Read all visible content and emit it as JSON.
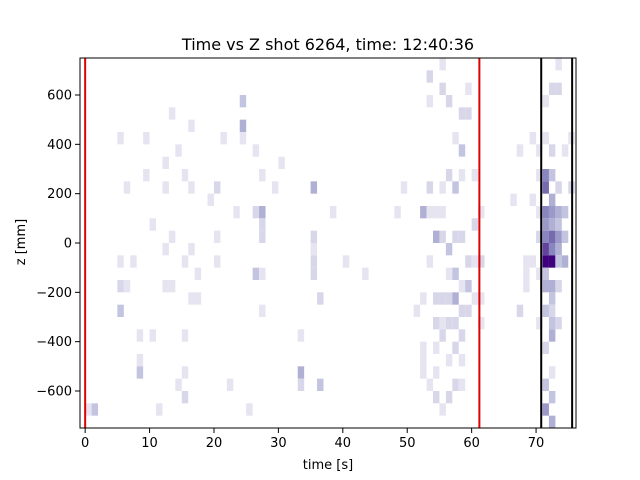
{
  "chart_data": {
    "type": "heatmap",
    "title": "Time vs Z shot 6264, time: 12:40:36",
    "xlabel": "time [s]",
    "ylabel": "z [mm]",
    "xlim": [
      -0.8,
      76.2
    ],
    "ylim": [
      -750,
      750
    ],
    "xticks": [
      0,
      10,
      20,
      30,
      40,
      50,
      60,
      70
    ],
    "yticks": [
      -600,
      -400,
      -200,
      0,
      200,
      400,
      600
    ],
    "ytick_labels": [
      "−600",
      "−400",
      "−200",
      "0",
      "200",
      "400",
      "600"
    ],
    "bin_width_s": 1.0,
    "bin_height_mm": 50,
    "grid": false,
    "colormap": "Purples",
    "vertical_lines": [
      {
        "x": 0.0,
        "color": "#e00000"
      },
      {
        "x": 61.2,
        "color": "#e00000"
      },
      {
        "x": 70.8,
        "color": "#000000"
      },
      {
        "x": 75.6,
        "color": "#000000"
      }
    ],
    "cells": [
      [
        0,
        -700,
        1
      ],
      [
        1,
        -700,
        3
      ],
      [
        5,
        400,
        1
      ],
      [
        5,
        -100,
        1
      ],
      [
        5,
        -200,
        2
      ],
      [
        5,
        -300,
        3
      ],
      [
        6,
        200,
        1
      ],
      [
        6,
        -200,
        1
      ],
      [
        7,
        -100,
        1
      ],
      [
        8,
        -400,
        1
      ],
      [
        8,
        -500,
        1
      ],
      [
        8,
        -550,
        3
      ],
      [
        9,
        400,
        1
      ],
      [
        9,
        250,
        1
      ],
      [
        10,
        50,
        1
      ],
      [
        10,
        -400,
        1
      ],
      [
        11,
        -700,
        1
      ],
      [
        12,
        300,
        1
      ],
      [
        12,
        200,
        1
      ],
      [
        12,
        -50,
        1
      ],
      [
        12,
        -200,
        1
      ],
      [
        13,
        500,
        1
      ],
      [
        13,
        0,
        1
      ],
      [
        13,
        -200,
        1
      ],
      [
        14,
        350,
        1
      ],
      [
        14,
        -600,
        1
      ],
      [
        15,
        250,
        1
      ],
      [
        15,
        -100,
        1
      ],
      [
        15,
        -400,
        1
      ],
      [
        15,
        -550,
        1
      ],
      [
        15,
        -650,
        2
      ],
      [
        16,
        450,
        1
      ],
      [
        16,
        200,
        1
      ],
      [
        16,
        -50,
        1
      ],
      [
        16,
        -250,
        1
      ],
      [
        17,
        -150,
        1
      ],
      [
        17,
        -250,
        1
      ],
      [
        19,
        150,
        1
      ],
      [
        20,
        200,
        2
      ],
      [
        20,
        0,
        1
      ],
      [
        20,
        -100,
        1
      ],
      [
        21,
        400,
        1
      ],
      [
        22,
        -600,
        1
      ],
      [
        23,
        100,
        1
      ],
      [
        24,
        550,
        3
      ],
      [
        24,
        450,
        4
      ],
      [
        24,
        400,
        1
      ],
      [
        25,
        -700,
        1
      ],
      [
        26,
        350,
        1
      ],
      [
        26,
        100,
        2
      ],
      [
        26,
        -150,
        3
      ],
      [
        27,
        250,
        1
      ],
      [
        27,
        100,
        4
      ],
      [
        27,
        50,
        2
      ],
      [
        27,
        0,
        2
      ],
      [
        27,
        -150,
        1
      ],
      [
        27,
        -300,
        1
      ],
      [
        29,
        200,
        1
      ],
      [
        30,
        300,
        1
      ],
      [
        33,
        -400,
        1
      ],
      [
        33,
        -550,
        4
      ],
      [
        33,
        -600,
        2
      ],
      [
        35,
        200,
        4
      ],
      [
        35,
        0,
        2
      ],
      [
        35,
        -50,
        1
      ],
      [
        35,
        -100,
        2
      ],
      [
        35,
        -150,
        2
      ],
      [
        36,
        -250,
        2
      ],
      [
        36,
        -600,
        3
      ],
      [
        38,
        100,
        1
      ],
      [
        40,
        -100,
        1
      ],
      [
        43,
        -150,
        1
      ],
      [
        48,
        100,
        1
      ],
      [
        49,
        200,
        1
      ],
      [
        51,
        -300,
        1
      ],
      [
        52,
        100,
        4
      ],
      [
        52,
        -250,
        1
      ],
      [
        52,
        -450,
        1
      ],
      [
        52,
        -500,
        1
      ],
      [
        52,
        -550,
        1
      ],
      [
        53,
        650,
        2
      ],
      [
        53,
        550,
        1
      ],
      [
        53,
        200,
        2
      ],
      [
        53,
        100,
        1
      ],
      [
        53,
        -100,
        1
      ],
      [
        53,
        -600,
        1
      ],
      [
        54,
        100,
        1
      ],
      [
        54,
        0,
        4
      ],
      [
        54,
        -250,
        2
      ],
      [
        54,
        -350,
        2
      ],
      [
        54,
        -450,
        1
      ],
      [
        54,
        -550,
        1
      ],
      [
        54,
        -650,
        2
      ],
      [
        55,
        700,
        1
      ],
      [
        55,
        600,
        2
      ],
      [
        55,
        200,
        1
      ],
      [
        55,
        100,
        1
      ],
      [
        55,
        0,
        2
      ],
      [
        55,
        -250,
        2
      ],
      [
        55,
        -350,
        1
      ],
      [
        55,
        -400,
        2
      ],
      [
        55,
        -700,
        1
      ],
      [
        56,
        550,
        2
      ],
      [
        56,
        250,
        2
      ],
      [
        56,
        -50,
        3
      ],
      [
        56,
        -150,
        1
      ],
      [
        56,
        -250,
        2
      ],
      [
        56,
        -350,
        2
      ],
      [
        56,
        -500,
        1
      ],
      [
        56,
        -650,
        2
      ],
      [
        57,
        400,
        1
      ],
      [
        57,
        200,
        3
      ],
      [
        57,
        0,
        2
      ],
      [
        57,
        -150,
        3
      ],
      [
        57,
        -250,
        4
      ],
      [
        57,
        -350,
        2
      ],
      [
        57,
        -450,
        2
      ],
      [
        57,
        -600,
        2
      ],
      [
        58,
        500,
        2
      ],
      [
        58,
        350,
        3
      ],
      [
        58,
        250,
        1
      ],
      [
        58,
        0,
        2
      ],
      [
        58,
        -200,
        1
      ],
      [
        58,
        -300,
        2
      ],
      [
        58,
        -400,
        2
      ],
      [
        58,
        -500,
        1
      ],
      [
        58,
        -600,
        1
      ],
      [
        59,
        600,
        1
      ],
      [
        59,
        500,
        2
      ],
      [
        59,
        -100,
        2
      ],
      [
        59,
        -200,
        3
      ],
      [
        59,
        -300,
        2
      ],
      [
        60,
        250,
        1
      ],
      [
        60,
        50,
        2
      ],
      [
        60,
        -100,
        1
      ],
      [
        60,
        -250,
        1
      ],
      [
        61,
        100,
        1
      ],
      [
        61,
        -100,
        2
      ],
      [
        61,
        -250,
        1
      ],
      [
        61,
        -350,
        1
      ],
      [
        66,
        150,
        1
      ],
      [
        67,
        350,
        1
      ],
      [
        67,
        -300,
        2
      ],
      [
        68,
        -100,
        1
      ],
      [
        68,
        -150,
        1
      ],
      [
        68,
        -200,
        1
      ],
      [
        69,
        400,
        1
      ],
      [
        69,
        150,
        1
      ],
      [
        69,
        -100,
        1
      ],
      [
        70,
        350,
        1
      ],
      [
        70,
        250,
        1
      ],
      [
        70,
        100,
        1
      ],
      [
        70,
        0,
        2
      ],
      [
        70,
        -150,
        1
      ],
      [
        70,
        -350,
        1
      ],
      [
        71,
        550,
        1
      ],
      [
        71,
        400,
        1
      ],
      [
        71,
        250,
        6
      ],
      [
        71,
        200,
        7
      ],
      [
        71,
        100,
        6
      ],
      [
        71,
        50,
        5
      ],
      [
        71,
        0,
        6
      ],
      [
        71,
        -50,
        8
      ],
      [
        71,
        -100,
        9
      ],
      [
        71,
        -150,
        3
      ],
      [
        71,
        -200,
        4
      ],
      [
        71,
        -300,
        3
      ],
      [
        71,
        -450,
        2
      ],
      [
        71,
        -600,
        3
      ],
      [
        71,
        -700,
        5
      ],
      [
        72,
        600,
        2
      ],
      [
        72,
        350,
        2
      ],
      [
        72,
        250,
        3
      ],
      [
        72,
        150,
        4
      ],
      [
        72,
        100,
        5
      ],
      [
        72,
        50,
        4
      ],
      [
        72,
        0,
        7
      ],
      [
        72,
        -50,
        6
      ],
      [
        72,
        -100,
        9
      ],
      [
        72,
        -200,
        4
      ],
      [
        72,
        -250,
        3
      ],
      [
        72,
        -300,
        2
      ],
      [
        72,
        -350,
        3
      ],
      [
        72,
        -400,
        4
      ],
      [
        72,
        -550,
        1
      ],
      [
        72,
        -650,
        3
      ],
      [
        72,
        -750,
        4
      ],
      [
        73,
        700,
        1
      ],
      [
        73,
        600,
        2
      ],
      [
        73,
        200,
        2
      ],
      [
        73,
        100,
        4
      ],
      [
        73,
        50,
        3
      ],
      [
        73,
        0,
        5
      ],
      [
        73,
        -50,
        4
      ],
      [
        73,
        -100,
        3
      ],
      [
        73,
        -200,
        2
      ],
      [
        73,
        -350,
        2
      ],
      [
        74,
        350,
        1
      ],
      [
        74,
        100,
        3
      ],
      [
        74,
        0,
        3
      ],
      [
        74,
        -100,
        4
      ],
      [
        75,
        400,
        1
      ],
      [
        75,
        200,
        2
      ]
    ]
  }
}
